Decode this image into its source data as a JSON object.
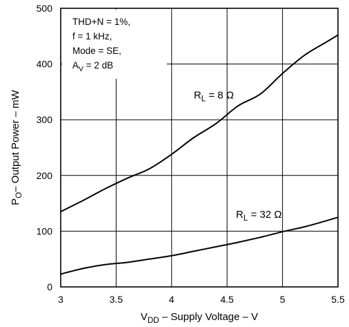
{
  "chart_data": {
    "type": "line",
    "xlabel": {
      "main": "V",
      "sub": "DD",
      "rest": " – Supply Voltage – V"
    },
    "ylabel": {
      "main": "P",
      "sub": "O",
      "rest": "– Output Power  – mW"
    },
    "xlim": [
      3,
      5.5
    ],
    "ylim": [
      0,
      500
    ],
    "x_ticks": [
      3,
      3.5,
      4,
      4.5,
      5,
      5.5
    ],
    "x_tick_labels": [
      "3",
      "3.5",
      "4",
      "4.5",
      "5",
      "5.5"
    ],
    "y_ticks": [
      0,
      100,
      200,
      300,
      400,
      500
    ],
    "y_tick_labels": [
      "0",
      "100",
      "200",
      "300",
      "400",
      "500"
    ],
    "grid": true,
    "conditions": [
      {
        "text": "THD+N = 1%,"
      },
      {
        "text": "f = 1 kHz,"
      },
      {
        "text": "Mode = SE,"
      },
      {
        "text": "A",
        "sub": "V",
        "rest": " = 2 dB"
      }
    ],
    "series": [
      {
        "name": "RL = 8 Ω",
        "label": {
          "main": "R",
          "sub": "L",
          "rest": " = 8 Ω"
        },
        "label_at": [
          4.2,
          338
        ],
        "x": [
          3.0,
          3.2,
          3.4,
          3.6,
          3.8,
          4.0,
          4.2,
          4.4,
          4.6,
          4.8,
          5.0,
          5.2,
          5.4,
          5.5
        ],
        "y": [
          135,
          155,
          176,
          195,
          212,
          238,
          268,
          293,
          325,
          346,
          383,
          416,
          440,
          452
        ]
      },
      {
        "name": "RL = 32 Ω",
        "label": {
          "main": "R",
          "sub": "L",
          "rest": " = 32 Ω"
        },
        "label_at": [
          4.58,
          124
        ],
        "x": [
          3.0,
          3.2,
          3.4,
          3.6,
          3.8,
          4.0,
          4.2,
          4.4,
          4.6,
          4.8,
          5.0,
          5.2,
          5.4,
          5.5
        ],
        "y": [
          23,
          33,
          40,
          44,
          50,
          56,
          64,
          72,
          80,
          89,
          99,
          108,
          119,
          125
        ]
      }
    ]
  }
}
